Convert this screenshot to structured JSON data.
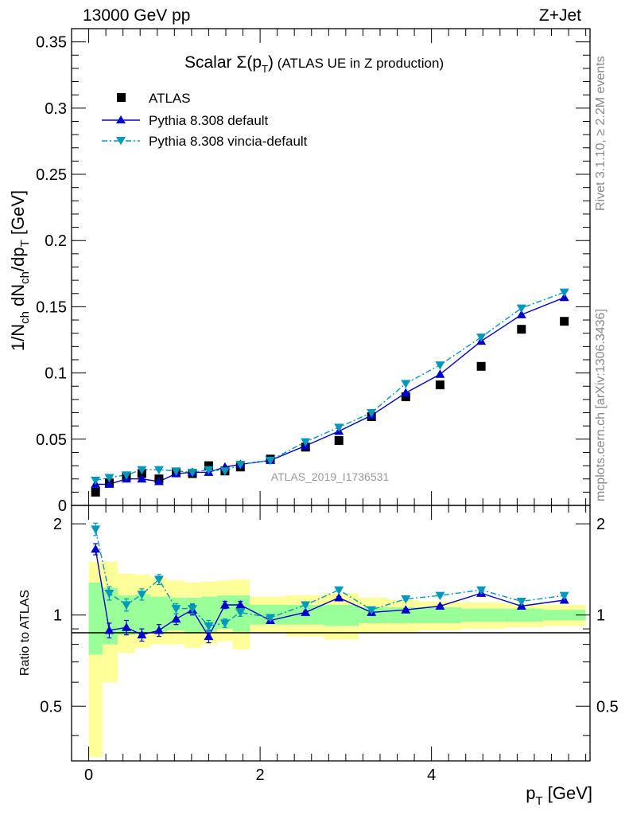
{
  "header": {
    "energy_label": "13000 GeV pp",
    "process_label": "Z+Jet"
  },
  "side": {
    "rivet_label": "Rivet 3.1.10, ≥ 2.2M events",
    "mcplots_label": "mcplots.cern.ch [arXiv:1306.3436]"
  },
  "chart_data": [
    {
      "type": "scatter",
      "panel": "main",
      "title_prefix": "Scalar ",
      "title_sigma": "Σ(p",
      "title_sub": "T",
      "title_close": ")",
      "title_suffix": "  (ATLAS UE in Z production)",
      "ylabel": "1/N_ch dN_ch/dp_T [GeV]",
      "xlabel": "",
      "analysis_label": "ATLAS_2019_I1736531",
      "xlim": [
        -0.2,
        5.85
      ],
      "ylim": [
        0,
        0.36
      ],
      "yticks": [
        0,
        0.05,
        0.1,
        0.15,
        0.2,
        0.25,
        0.3,
        0.35
      ],
      "ytick_labels": [
        "0",
        "0.05",
        "0.1",
        "0.15",
        "0.2",
        "0.25",
        "0.3",
        "0.35"
      ],
      "legend_position": "top-left",
      "series": [
        {
          "name": "ATLAS",
          "style": "square",
          "color": "#000000",
          "x": [
            0.08,
            0.24,
            0.44,
            0.62,
            0.82,
            1.02,
            1.21,
            1.4,
            1.59,
            1.77,
            2.12,
            2.53,
            2.92,
            3.3,
            3.7,
            4.1,
            4.58,
            5.05,
            5.55
          ],
          "y": [
            0.01,
            0.017,
            0.022,
            0.024,
            0.02,
            0.025,
            0.024,
            0.03,
            0.026,
            0.029,
            0.035,
            0.044,
            0.049,
            0.067,
            0.082,
            0.091,
            0.105,
            0.133,
            0.139
          ]
        },
        {
          "name": "Pythia 8.308 default",
          "style": "triangle-up",
          "dash": "",
          "color": "#0000cc",
          "x": [
            0.08,
            0.24,
            0.44,
            0.62,
            0.82,
            1.02,
            1.21,
            1.4,
            1.59,
            1.77,
            2.12,
            2.53,
            2.92,
            3.3,
            3.7,
            4.1,
            4.58,
            5.05,
            5.55
          ],
          "y": [
            0.016,
            0.016,
            0.02,
            0.02,
            0.018,
            0.024,
            0.025,
            0.025,
            0.029,
            0.031,
            0.034,
            0.045,
            0.056,
            0.068,
            0.085,
            0.099,
            0.124,
            0.144,
            0.157
          ]
        },
        {
          "name": "Pythia 8.308 vincia-default",
          "style": "triangle-down",
          "dash": "7,3,2,3",
          "color": "#0099bb",
          "x": [
            0.08,
            0.24,
            0.44,
            0.62,
            0.82,
            1.02,
            1.21,
            1.4,
            1.59,
            1.77,
            2.12,
            2.53,
            2.92,
            3.3,
            3.7,
            4.1,
            4.58,
            5.05,
            5.55
          ],
          "y": [
            0.019,
            0.021,
            0.023,
            0.027,
            0.027,
            0.026,
            0.025,
            0.027,
            0.026,
            0.031,
            0.034,
            0.048,
            0.059,
            0.07,
            0.092,
            0.106,
            0.127,
            0.149,
            0.161
          ]
        }
      ]
    },
    {
      "type": "line",
      "panel": "ratio",
      "ylabel": "Ratio to ATLAS",
      "xlabel": "p_T [GeV]",
      "xlim": [
        -0.2,
        5.85
      ],
      "ylim": [
        0.33,
        2.3
      ],
      "log_y": true,
      "xticks": [
        0,
        2,
        4
      ],
      "xtick_labels": [
        "0",
        "2",
        "4"
      ],
      "yticks": [
        0.5,
        1,
        2
      ],
      "ytick_labels": [
        "0.5",
        "1",
        "2"
      ],
      "bands": {
        "edges": [
          0.0,
          0.16,
          0.34,
          0.54,
          0.72,
          0.92,
          1.12,
          1.32,
          1.5,
          1.68,
          1.88,
          2.3,
          2.75,
          3.15,
          3.5,
          3.85,
          4.35,
          4.85,
          5.3,
          5.8
        ],
        "yellow_lo": [
          0.34,
          0.6,
          0.75,
          0.78,
          0.8,
          0.8,
          0.78,
          0.8,
          0.82,
          0.77,
          0.88,
          0.85,
          0.83,
          0.87,
          0.88,
          0.89,
          0.9,
          0.91,
          0.92
        ],
        "yellow_hi": [
          1.5,
          1.5,
          1.37,
          1.36,
          1.33,
          1.3,
          1.28,
          1.29,
          1.3,
          1.31,
          1.15,
          1.16,
          1.18,
          1.14,
          1.12,
          1.11,
          1.1,
          1.09,
          1.08
        ],
        "green_lo": [
          0.74,
          0.8,
          0.86,
          0.87,
          0.88,
          0.89,
          0.87,
          0.88,
          0.9,
          0.88,
          0.93,
          0.93,
          0.92,
          0.94,
          0.94,
          0.94,
          0.95,
          0.95,
          0.96
        ],
        "green_hi": [
          1.28,
          1.23,
          1.16,
          1.17,
          1.15,
          1.14,
          1.14,
          1.15,
          1.16,
          1.16,
          1.08,
          1.08,
          1.08,
          1.06,
          1.06,
          1.06,
          1.05,
          1.05,
          1.04
        ]
      },
      "series": [
        {
          "name": "Pythia 8.308 default",
          "style": "triangle-up",
          "dash": "",
          "color": "#0000cc",
          "x": [
            0.08,
            0.24,
            0.44,
            0.62,
            0.82,
            1.02,
            1.21,
            1.4,
            1.59,
            1.77,
            2.12,
            2.53,
            2.92,
            3.3,
            3.7,
            4.1,
            4.58,
            5.05,
            5.55
          ],
          "y": [
            1.65,
            0.89,
            0.91,
            0.86,
            0.89,
            0.97,
            1.04,
            0.85,
            1.08,
            1.08,
            0.96,
            1.02,
            1.14,
            1.02,
            1.04,
            1.07,
            1.18,
            1.07,
            1.12
          ],
          "err": [
            0.07,
            0.05,
            0.05,
            0.04,
            0.04,
            0.04,
            0.04,
            0.04,
            0.03,
            0.03,
            0.015,
            0.01,
            0.01,
            0.01,
            0.01,
            0.01,
            0.01,
            0.01,
            0.01
          ]
        },
        {
          "name": "Pythia 8.308 vincia-default",
          "style": "triangle-down",
          "dash": "7,3,2,3",
          "color": "#0099bb",
          "x": [
            0.08,
            0.24,
            0.44,
            0.62,
            0.82,
            1.02,
            1.21,
            1.4,
            1.59,
            1.77,
            2.12,
            2.53,
            2.92,
            3.3,
            3.7,
            4.1,
            4.58,
            5.05,
            5.55
          ],
          "y": [
            1.92,
            1.18,
            1.08,
            1.17,
            1.31,
            1.05,
            1.05,
            0.92,
            0.94,
            1.02,
            0.98,
            1.08,
            1.21,
            1.04,
            1.13,
            1.16,
            1.21,
            1.11,
            1.16
          ],
          "err": [
            0.09,
            0.06,
            0.05,
            0.05,
            0.05,
            0.04,
            0.04,
            0.04,
            0.03,
            0.03,
            0.015,
            0.01,
            0.01,
            0.01,
            0.01,
            0.01,
            0.01,
            0.01,
            0.01
          ]
        }
      ]
    }
  ]
}
